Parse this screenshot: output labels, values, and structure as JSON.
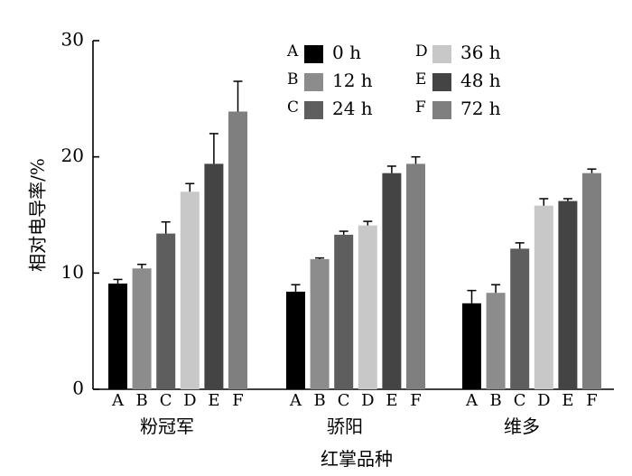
{
  "chart_data": {
    "type": "bar",
    "xlabel": "红掌品种",
    "ylabel": "相对电导率/%",
    "ylim": [
      0,
      30
    ],
    "yticks": [
      0,
      10,
      20,
      30
    ],
    "groups": [
      "粉冠军",
      "骄阳",
      "维多"
    ],
    "bar_letters": [
      "A",
      "B",
      "C",
      "D",
      "E",
      "F"
    ],
    "legend_position": "top",
    "series": [
      {
        "letter": "A",
        "name": "0 h",
        "color": "#000000",
        "values": [
          9.1,
          8.4,
          7.4
        ],
        "errors": [
          0.35,
          0.6,
          1.1
        ]
      },
      {
        "letter": "B",
        "name": "12 h",
        "color": "#8c8c8c",
        "values": [
          10.4,
          11.2,
          8.3
        ],
        "errors": [
          0.35,
          0.1,
          0.7
        ]
      },
      {
        "letter": "C",
        "name": "24 h",
        "color": "#5e5e5e",
        "values": [
          13.4,
          13.3,
          12.1
        ],
        "errors": [
          1.0,
          0.3,
          0.5
        ]
      },
      {
        "letter": "D",
        "name": "36 h",
        "color": "#c8c8c8",
        "values": [
          17.0,
          14.1,
          15.8
        ],
        "errors": [
          0.7,
          0.35,
          0.6
        ]
      },
      {
        "letter": "E",
        "name": "48 h",
        "color": "#444444",
        "values": [
          19.4,
          18.6,
          16.2
        ],
        "errors": [
          2.6,
          0.6,
          0.2
        ]
      },
      {
        "letter": "F",
        "name": "72 h",
        "color": "#7f7f7f",
        "values": [
          23.9,
          19.4,
          18.6
        ],
        "errors": [
          2.6,
          0.6,
          0.35
        ]
      }
    ]
  }
}
